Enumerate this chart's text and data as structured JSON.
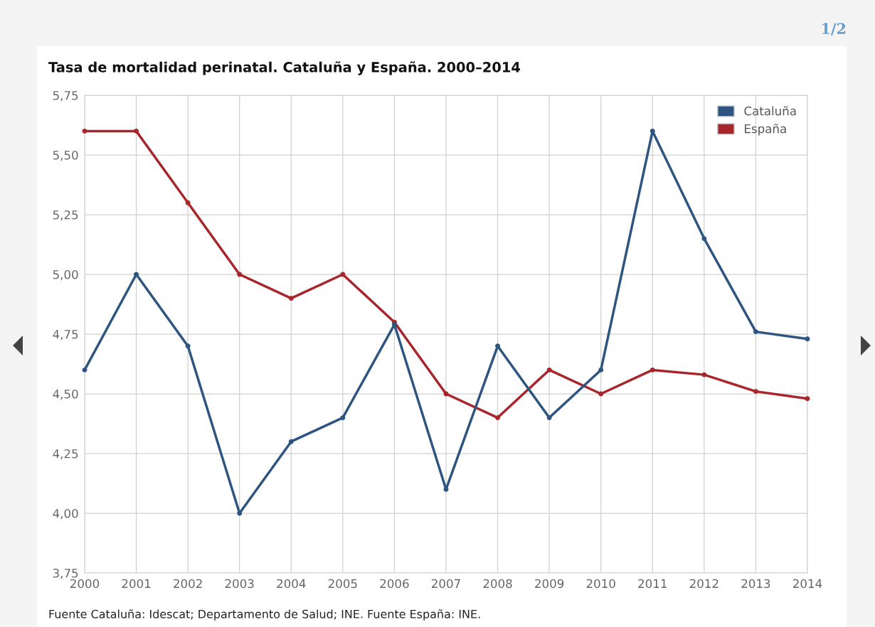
{
  "chart_data": {
    "type": "line",
    "title": "Tasa de mortalidad perinatal. Cataluña y España. 2000–2014",
    "categories": [
      "2000",
      "2001",
      "2002",
      "2003",
      "2004",
      "2005",
      "2006",
      "2007",
      "2008",
      "2009",
      "2010",
      "2011",
      "2012",
      "2013",
      "2014"
    ],
    "series": [
      {
        "name": "Cataluña",
        "color": "#2e5580",
        "values": [
          4.6,
          5.0,
          4.7,
          4.0,
          4.3,
          4.4,
          4.79,
          4.1,
          4.7,
          4.4,
          4.6,
          5.6,
          5.15,
          4.76,
          4.73
        ]
      },
      {
        "name": "España",
        "color": "#a8262b",
        "values": [
          5.6,
          5.6,
          5.3,
          5.0,
          4.9,
          5.0,
          4.8,
          4.5,
          4.4,
          4.6,
          4.5,
          4.6,
          4.58,
          4.51,
          4.48
        ]
      }
    ],
    "ylim": [
      3.75,
      5.75
    ],
    "yticks": [
      {
        "value": 3.75,
        "label": "3,75"
      },
      {
        "value": 4.0,
        "label": "4,00"
      },
      {
        "value": 4.25,
        "label": "4,25"
      },
      {
        "value": 4.5,
        "label": "4,50"
      },
      {
        "value": 4.75,
        "label": "4,75"
      },
      {
        "value": 5.0,
        "label": "5,00"
      },
      {
        "value": 5.25,
        "label": "5,25"
      },
      {
        "value": 5.5,
        "label": "5,50"
      },
      {
        "value": 5.75,
        "label": "5,75"
      }
    ],
    "grid": true,
    "legend": "top right",
    "marker": "circle",
    "line_style": "solid",
    "annotations": [
      "Fuente Cataluña: Idescat; Departamento de Salud; INE. Fuente España: INE.",
      "1/2"
    ]
  }
}
